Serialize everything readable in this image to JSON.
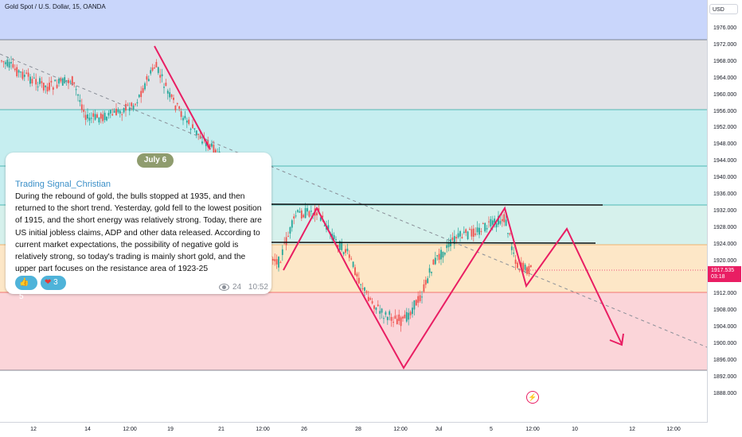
{
  "header": {
    "title": "Gold Spot / U.S. Dollar, 15, OANDA"
  },
  "currency_button": {
    "label": "USD"
  },
  "price_axis": {
    "labels": [
      "1976.000",
      "1972.000",
      "1968.000",
      "1964.000",
      "1960.000",
      "1956.000",
      "1952.000",
      "1948.000",
      "1944.000",
      "1940.000",
      "1936.000",
      "1932.000",
      "1928.000",
      "1924.000",
      "1920.000",
      "1916.000",
      "1912.000",
      "1908.000",
      "1904.000",
      "1900.000",
      "1896.000",
      "1892.000",
      "1888.000"
    ]
  },
  "current_price": {
    "value": "1917.535",
    "countdown": "03:18"
  },
  "time_axis": {
    "labels": [
      "12",
      "14",
      "12:00",
      "19",
      "21",
      "12:00",
      "26",
      "28",
      "12:00",
      "Jul",
      "5",
      "12:00",
      "10",
      "12",
      "12:00"
    ]
  },
  "message": {
    "date": "July 6",
    "author": "Trading Signal_Christian",
    "text": "During the rebound of gold, the bulls stopped at 1935, and then returned to the short trend. Yesterday, gold fell to the lowest position of 1915, and the short energy was relatively strong. Today, there are US initial jobless claims, ADP and other data released. According to current market expectations, the possibility of negative gold is relatively strong, so today's trading is mainly short gold, and the upper part focuses on the resistance area of 1923-25",
    "reactions": [
      {
        "emoji": "👍",
        "count": "5"
      },
      {
        "emoji": "❤",
        "count": "3"
      }
    ],
    "views": "24",
    "time": "10:52"
  },
  "colors": {
    "bull": "#26a69a",
    "bear": "#ef5350",
    "drawing": "#e91e63",
    "line": "#000000"
  },
  "icons": {
    "eye": "eye-icon",
    "lightning": "lightning-icon"
  }
}
